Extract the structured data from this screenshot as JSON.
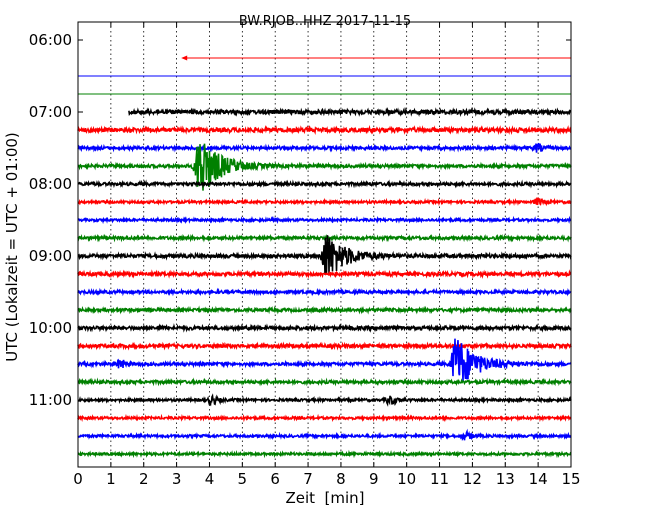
{
  "chart_data": {
    "type": "line",
    "title": "BW.RJOB..HHZ 2017-11-15",
    "xlabel": "Zeit  [min]",
    "ylabel": "UTC (Lokalzeit = UTC + 01:00)",
    "xlim": [
      0,
      15
    ],
    "x_ticks": [
      "0",
      "1",
      "2",
      "3",
      "4",
      "5",
      "6",
      "7",
      "8",
      "9",
      "10",
      "11",
      "12",
      "13",
      "14",
      "15"
    ],
    "y_ticks": [
      {
        "label": "06:00",
        "minutes": 0
      },
      {
        "label": "07:00",
        "minutes": 60
      },
      {
        "label": "08:00",
        "minutes": 120
      },
      {
        "label": "09:00",
        "minutes": 180
      },
      {
        "label": "10:00",
        "minutes": 240
      },
      {
        "label": "11:00",
        "minutes": 300
      }
    ],
    "grid_x": "dotted",
    "color_cycle": [
      "#ff0000",
      "#0000ff",
      "#008000",
      "#000000"
    ],
    "traces": [
      {
        "start": "06:15",
        "data_start_min": 3.2,
        "amplitude": 0.0
      },
      {
        "start": "06:30",
        "data_start_min": 0,
        "amplitude": 0.0
      },
      {
        "start": "06:45",
        "data_start_min": 0,
        "amplitude": 0.0
      },
      {
        "start": "07:00",
        "data_start_min": 1.55,
        "amplitude": 0.35
      },
      {
        "start": "07:15",
        "data_start_min": 0,
        "amplitude": 0.35
      },
      {
        "start": "07:30",
        "data_start_min": 0,
        "amplitude": 0.25,
        "events": [
          {
            "min": 14.0,
            "amp": 0.35
          }
        ]
      },
      {
        "start": "07:45",
        "data_start_min": 0,
        "amplitude": 0.25,
        "events": [
          {
            "min": 3.7,
            "amp": 2.8
          }
        ]
      },
      {
        "start": "08:00",
        "data_start_min": 0,
        "amplitude": 0.25
      },
      {
        "start": "08:15",
        "data_start_min": 0,
        "amplitude": 0.2,
        "events": [
          {
            "min": 14.0,
            "amp": 0.3
          }
        ]
      },
      {
        "start": "08:30",
        "data_start_min": 0,
        "amplitude": 0.2
      },
      {
        "start": "08:45",
        "data_start_min": 0,
        "amplitude": 0.25
      },
      {
        "start": "09:00",
        "data_start_min": 0,
        "amplitude": 0.3,
        "events": [
          {
            "min": 7.55,
            "amp": 2.0
          }
        ]
      },
      {
        "start": "09:15",
        "data_start_min": 0,
        "amplitude": 0.3
      },
      {
        "start": "09:30",
        "data_start_min": 0,
        "amplitude": 0.25
      },
      {
        "start": "09:45",
        "data_start_min": 0,
        "amplitude": 0.25
      },
      {
        "start": "10:00",
        "data_start_min": 0,
        "amplitude": 0.3
      },
      {
        "start": "10:15",
        "data_start_min": 0,
        "amplitude": 0.3
      },
      {
        "start": "10:30",
        "data_start_min": 0,
        "amplitude": 0.25,
        "events": [
          {
            "min": 1.3,
            "amp": 0.4
          },
          {
            "min": 11.5,
            "amp": 2.4
          }
        ]
      },
      {
        "start": "10:45",
        "data_start_min": 0,
        "amplitude": 0.25
      },
      {
        "start": "11:00",
        "data_start_min": 0,
        "amplitude": 0.2,
        "events": [
          {
            "min": 4.1,
            "amp": 0.4
          },
          {
            "min": 9.5,
            "amp": 0.4
          }
        ]
      },
      {
        "start": "11:15",
        "data_start_min": 0,
        "amplitude": 0.2
      },
      {
        "start": "11:30",
        "data_start_min": 0,
        "amplitude": 0.2,
        "events": [
          {
            "min": 11.8,
            "amp": 0.35
          }
        ]
      },
      {
        "start": "11:45",
        "data_start_min": 0,
        "amplitude": 0.2
      }
    ]
  }
}
